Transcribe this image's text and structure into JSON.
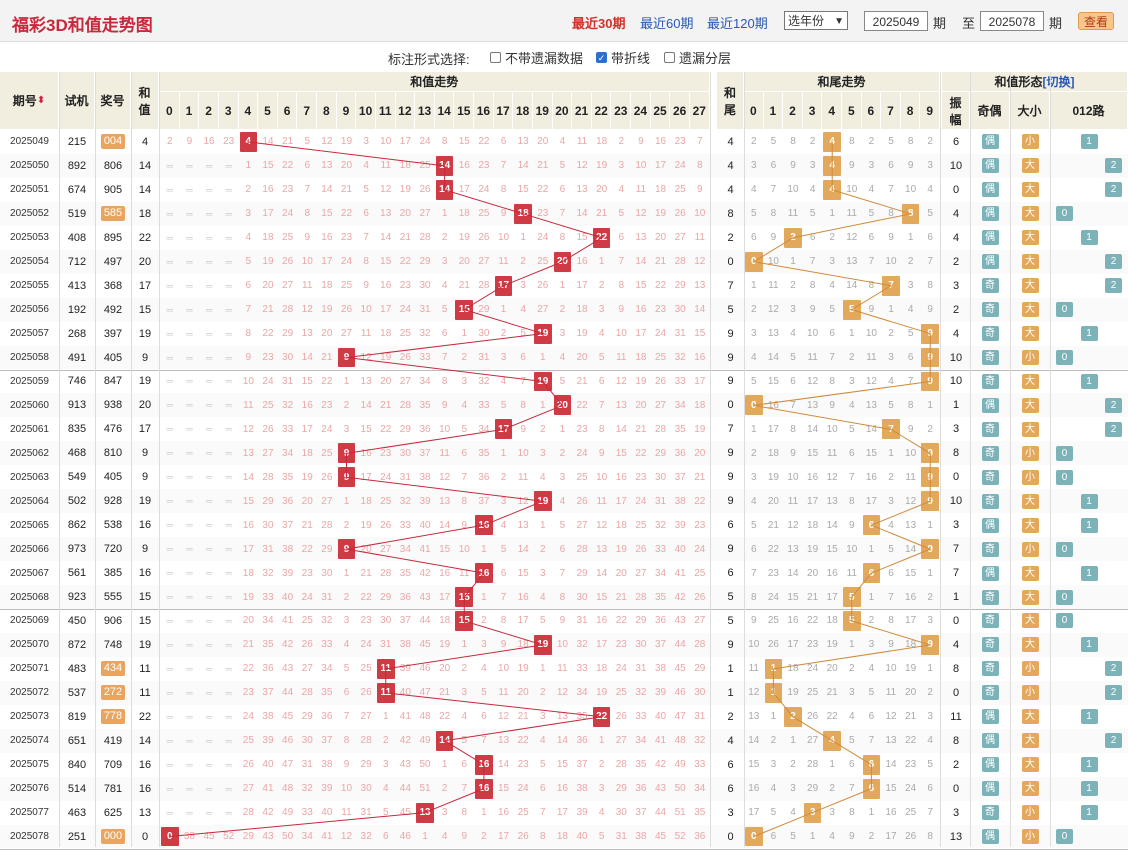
{
  "header": {
    "title": "福彩3D和值走势图",
    "range_links": [
      "最近30期",
      "最近60期",
      "最近120期"
    ],
    "year_select": "选年份",
    "from_issue": "2025049",
    "period_label": "期",
    "to_label": "至",
    "to_issue": "2025078",
    "period_label2": "期",
    "query_button": "查看"
  },
  "options": {
    "label": "标注形式选择:",
    "items": [
      {
        "label": "不带遗漏数据",
        "checked": false
      },
      {
        "label": "带折线",
        "checked": true
      },
      {
        "label": "遗漏分层",
        "checked": false
      }
    ]
  },
  "columns": {
    "issue": "期号",
    "try": "试机",
    "win": "奖号",
    "sum": "和值",
    "sum_trend": "和值走势",
    "tail": "和尾",
    "tail_trend": "和尾走势",
    "shape": "和值形态",
    "switch": "[切换]",
    "amp": "振幅",
    "odd_even": "奇偶",
    "size": "大小",
    "route": "012路"
  },
  "sum_numbers": [
    "0",
    "1",
    "2",
    "3",
    "4",
    "5",
    "6",
    "7",
    "8",
    "9",
    "10",
    "11",
    "12",
    "13",
    "14",
    "15",
    "16",
    "17",
    "18",
    "19",
    "20",
    "21",
    "22",
    "23",
    "24",
    "25",
    "26",
    "27"
  ],
  "tail_numbers": [
    "0",
    "1",
    "2",
    "3",
    "4",
    "5",
    "6",
    "7",
    "8",
    "9"
  ],
  "colors": {
    "hit_sum": "#cf3a44",
    "hit_tail": "#e2a95c",
    "tag": "#7bb3b8",
    "header": "#f1eee0"
  },
  "rows": [
    {
      "issue": "2025049",
      "try": "215",
      "win": "004",
      "win_hl": true,
      "sum": "4",
      "tail": "4",
      "amp": "6",
      "oe": "偶",
      "oe_c": "teal",
      "sz": "小",
      "sz_c": "gold",
      "route": "1"
    },
    {
      "issue": "2025050",
      "try": "892",
      "win": "806",
      "win_hl": false,
      "sum": "14",
      "tail": "4",
      "amp": "10",
      "oe": "偶",
      "oe_c": "teal",
      "sz": "大",
      "sz_c": "gold",
      "route": "2"
    },
    {
      "issue": "2025051",
      "try": "674",
      "win": "905",
      "win_hl": false,
      "sum": "14",
      "tail": "4",
      "amp": "0",
      "oe": "偶",
      "oe_c": "teal",
      "sz": "大",
      "sz_c": "gold",
      "route": "2"
    },
    {
      "issue": "2025052",
      "try": "519",
      "win": "585",
      "win_hl": true,
      "sum": "18",
      "tail": "8",
      "amp": "4",
      "oe": "偶",
      "oe_c": "teal",
      "sz": "大",
      "sz_c": "gold",
      "route": "0"
    },
    {
      "issue": "2025053",
      "try": "408",
      "win": "895",
      "win_hl": false,
      "sum": "22",
      "tail": "2",
      "amp": "4",
      "oe": "偶",
      "oe_c": "teal",
      "sz": "大",
      "sz_c": "gold",
      "route": "1"
    },
    {
      "issue": "2025054",
      "try": "712",
      "win": "497",
      "win_hl": false,
      "sum": "20",
      "tail": "0",
      "amp": "2",
      "oe": "偶",
      "oe_c": "teal",
      "sz": "大",
      "sz_c": "gold",
      "route": "2"
    },
    {
      "issue": "2025055",
      "try": "413",
      "win": "368",
      "win_hl": false,
      "sum": "17",
      "tail": "7",
      "amp": "3",
      "oe": "奇",
      "oe_c": "teal",
      "sz": "大",
      "sz_c": "gold",
      "route": "2"
    },
    {
      "issue": "2025056",
      "try": "192",
      "win": "492",
      "win_hl": false,
      "sum": "15",
      "tail": "5",
      "amp": "2",
      "oe": "奇",
      "oe_c": "teal",
      "sz": "大",
      "sz_c": "gold",
      "route": "0"
    },
    {
      "issue": "2025057",
      "try": "268",
      "win": "397",
      "win_hl": false,
      "sum": "19",
      "tail": "9",
      "amp": "4",
      "oe": "奇",
      "oe_c": "teal",
      "sz": "大",
      "sz_c": "gold",
      "route": "1"
    },
    {
      "issue": "2025058",
      "try": "491",
      "win": "405",
      "win_hl": false,
      "sum": "9",
      "tail": "9",
      "amp": "10",
      "oe": "奇",
      "oe_c": "teal",
      "sz": "小",
      "sz_c": "gold",
      "route": "0"
    },
    {
      "issue": "2025059",
      "try": "746",
      "win": "847",
      "win_hl": false,
      "sum": "19",
      "tail": "9",
      "amp": "10",
      "oe": "奇",
      "oe_c": "teal",
      "sz": "大",
      "sz_c": "gold",
      "route": "1"
    },
    {
      "issue": "2025060",
      "try": "913",
      "win": "938",
      "win_hl": false,
      "sum": "20",
      "tail": "0",
      "amp": "1",
      "oe": "偶",
      "oe_c": "teal",
      "sz": "大",
      "sz_c": "gold",
      "route": "2"
    },
    {
      "issue": "2025061",
      "try": "835",
      "win": "476",
      "win_hl": false,
      "sum": "17",
      "tail": "7",
      "amp": "3",
      "oe": "奇",
      "oe_c": "teal",
      "sz": "大",
      "sz_c": "gold",
      "route": "2"
    },
    {
      "issue": "2025062",
      "try": "468",
      "win": "810",
      "win_hl": false,
      "sum": "9",
      "tail": "9",
      "amp": "8",
      "oe": "奇",
      "oe_c": "teal",
      "sz": "小",
      "sz_c": "gold",
      "route": "0"
    },
    {
      "issue": "2025063",
      "try": "549",
      "win": "405",
      "win_hl": false,
      "sum": "9",
      "tail": "9",
      "amp": "0",
      "oe": "奇",
      "oe_c": "teal",
      "sz": "小",
      "sz_c": "gold",
      "route": "0"
    },
    {
      "issue": "2025064",
      "try": "502",
      "win": "928",
      "win_hl": false,
      "sum": "19",
      "tail": "9",
      "amp": "10",
      "oe": "奇",
      "oe_c": "teal",
      "sz": "大",
      "sz_c": "gold",
      "route": "1"
    },
    {
      "issue": "2025065",
      "try": "862",
      "win": "538",
      "win_hl": false,
      "sum": "16",
      "tail": "6",
      "amp": "3",
      "oe": "偶",
      "oe_c": "teal",
      "sz": "大",
      "sz_c": "gold",
      "route": "1"
    },
    {
      "issue": "2025066",
      "try": "973",
      "win": "720",
      "win_hl": false,
      "sum": "9",
      "tail": "9",
      "amp": "7",
      "oe": "奇",
      "oe_c": "teal",
      "sz": "小",
      "sz_c": "gold",
      "route": "0"
    },
    {
      "issue": "2025067",
      "try": "561",
      "win": "385",
      "win_hl": false,
      "sum": "16",
      "tail": "6",
      "amp": "7",
      "oe": "偶",
      "oe_c": "teal",
      "sz": "大",
      "sz_c": "gold",
      "route": "1"
    },
    {
      "issue": "2025068",
      "try": "923",
      "win": "555",
      "win_hl": false,
      "sum": "15",
      "tail": "5",
      "amp": "1",
      "oe": "奇",
      "oe_c": "teal",
      "sz": "大",
      "sz_c": "gold",
      "route": "0"
    },
    {
      "issue": "2025069",
      "try": "450",
      "win": "906",
      "win_hl": false,
      "sum": "15",
      "tail": "5",
      "amp": "0",
      "oe": "奇",
      "oe_c": "teal",
      "sz": "大",
      "sz_c": "gold",
      "route": "0"
    },
    {
      "issue": "2025070",
      "try": "872",
      "win": "748",
      "win_hl": false,
      "sum": "19",
      "tail": "9",
      "amp": "4",
      "oe": "奇",
      "oe_c": "teal",
      "sz": "大",
      "sz_c": "gold",
      "route": "1"
    },
    {
      "issue": "2025071",
      "try": "483",
      "win": "434",
      "win_hl": true,
      "sum": "11",
      "tail": "1",
      "amp": "8",
      "oe": "奇",
      "oe_c": "teal",
      "sz": "小",
      "sz_c": "gold",
      "route": "2"
    },
    {
      "issue": "2025072",
      "try": "537",
      "win": "272",
      "win_hl": true,
      "sum": "11",
      "tail": "1",
      "amp": "0",
      "oe": "奇",
      "oe_c": "teal",
      "sz": "小",
      "sz_c": "gold",
      "route": "2"
    },
    {
      "issue": "2025073",
      "try": "819",
      "win": "778",
      "win_hl": true,
      "sum": "22",
      "tail": "2",
      "amp": "11",
      "oe": "偶",
      "oe_c": "teal",
      "sz": "大",
      "sz_c": "gold",
      "route": "1"
    },
    {
      "issue": "2025074",
      "try": "651",
      "win": "419",
      "win_hl": false,
      "sum": "14",
      "tail": "4",
      "amp": "8",
      "oe": "偶",
      "oe_c": "teal",
      "sz": "大",
      "sz_c": "gold",
      "route": "2"
    },
    {
      "issue": "2025075",
      "try": "840",
      "win": "709",
      "win_hl": false,
      "sum": "16",
      "tail": "6",
      "amp": "2",
      "oe": "偶",
      "oe_c": "teal",
      "sz": "大",
      "sz_c": "gold",
      "route": "1"
    },
    {
      "issue": "2025076",
      "try": "514",
      "win": "781",
      "win_hl": false,
      "sum": "16",
      "tail": "6",
      "amp": "0",
      "oe": "偶",
      "oe_c": "teal",
      "sz": "大",
      "sz_c": "gold",
      "route": "1"
    },
    {
      "issue": "2025077",
      "try": "463",
      "win": "625",
      "win_hl": false,
      "sum": "13",
      "tail": "3",
      "amp": "3",
      "oe": "奇",
      "oe_c": "teal",
      "sz": "小",
      "sz_c": "gold",
      "route": "1"
    },
    {
      "issue": "2025078",
      "try": "251",
      "win": "000",
      "win_hl": true,
      "sum": "0",
      "tail": "0",
      "amp": "13",
      "oe": "偶",
      "oe_c": "teal",
      "sz": "小",
      "sz_c": "gold",
      "route": "0"
    }
  ]
}
